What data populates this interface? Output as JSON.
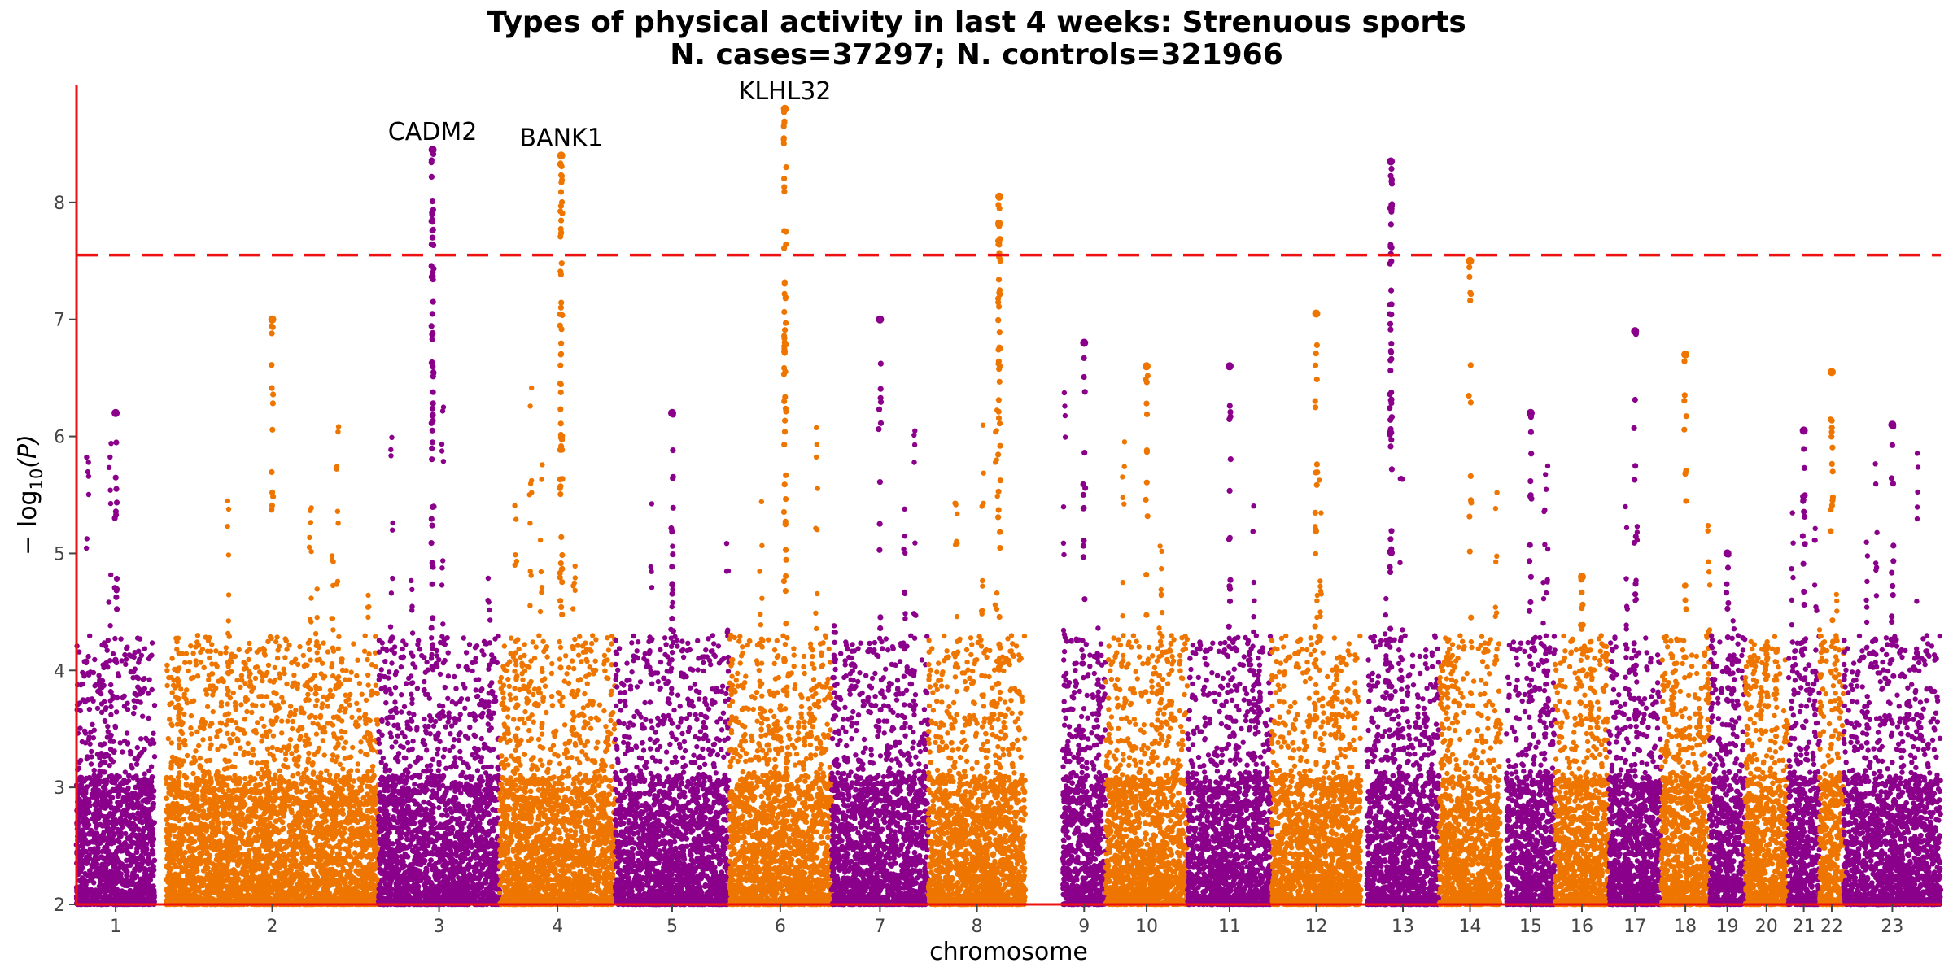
{
  "chart_data": {
    "type": "scatter",
    "subtype": "manhattan",
    "title": "Types of physical activity in last 4 weeks: Strenuous sports",
    "subtitle": "N. cases=37297; N. controls=321966",
    "xlabel": "chromosome",
    "ylabel_prefix": "− log",
    "ylabel_sub": "10",
    "ylabel_suffix": "(P)",
    "ylim": [
      2,
      9
    ],
    "yticks": [
      2,
      3,
      4,
      5,
      6,
      7,
      8
    ],
    "significance_line": 7.55,
    "colors": {
      "odd": "#8B008B",
      "even": "#EE7600",
      "threshold": "#EE1111",
      "axis": "#EE1111"
    },
    "chromosomes": [
      {
        "label": "1",
        "start": 0.0,
        "end": 0.042,
        "max": 6.2
      },
      {
        "label": "2",
        "start": 0.048,
        "end": 0.162,
        "max": 7.0
      },
      {
        "label": "3",
        "start": 0.162,
        "end": 0.227,
        "max": 8.45,
        "peak_x": 0.191
      },
      {
        "label": "4",
        "start": 0.227,
        "end": 0.289,
        "max": 8.4,
        "peak_x": 0.26
      },
      {
        "label": "5",
        "start": 0.289,
        "end": 0.35,
        "max": 6.2
      },
      {
        "label": "6",
        "start": 0.35,
        "end": 0.405,
        "max": 8.8,
        "peak_x": 0.38
      },
      {
        "label": "7",
        "start": 0.405,
        "end": 0.457,
        "max": 7.0
      },
      {
        "label": "8",
        "start": 0.457,
        "end": 0.509,
        "max": 8.05,
        "peak_x": 0.495
      },
      {
        "label": "9",
        "start": 0.529,
        "end": 0.552,
        "max": 6.8
      },
      {
        "label": "10",
        "start": 0.552,
        "end": 0.596,
        "max": 6.6
      },
      {
        "label": "11",
        "start": 0.596,
        "end": 0.641,
        "max": 6.6
      },
      {
        "label": "12",
        "start": 0.641,
        "end": 0.689,
        "max": 7.05
      },
      {
        "label": "13",
        "start": 0.692,
        "end": 0.731,
        "max": 8.35,
        "peak_x": 0.705
      },
      {
        "label": "14",
        "start": 0.731,
        "end": 0.764,
        "max": 7.5
      },
      {
        "label": "15",
        "start": 0.767,
        "end": 0.793,
        "max": 6.2
      },
      {
        "label": "16",
        "start": 0.793,
        "end": 0.822,
        "max": 4.8
      },
      {
        "label": "17",
        "start": 0.822,
        "end": 0.85,
        "max": 6.9
      },
      {
        "label": "18",
        "start": 0.85,
        "end": 0.876,
        "max": 6.7
      },
      {
        "label": "19",
        "start": 0.876,
        "end": 0.895,
        "max": 5.0
      },
      {
        "label": "20",
        "start": 0.895,
        "end": 0.918,
        "max": 4.2
      },
      {
        "label": "21",
        "start": 0.918,
        "end": 0.935,
        "max": 6.05
      },
      {
        "label": "22",
        "start": 0.935,
        "end": 0.948,
        "max": 6.55
      },
      {
        "label": "23",
        "start": 0.948,
        "end": 1.0,
        "max": 6.1
      }
    ],
    "annotations": [
      {
        "text": "CADM2",
        "chrom": "3",
        "y": 8.45
      },
      {
        "text": "BANK1",
        "chrom": "4",
        "y": 8.4
      },
      {
        "text": "KLHL32",
        "chrom": "6",
        "y": 8.8
      }
    ],
    "grid": false,
    "legend": "none"
  }
}
